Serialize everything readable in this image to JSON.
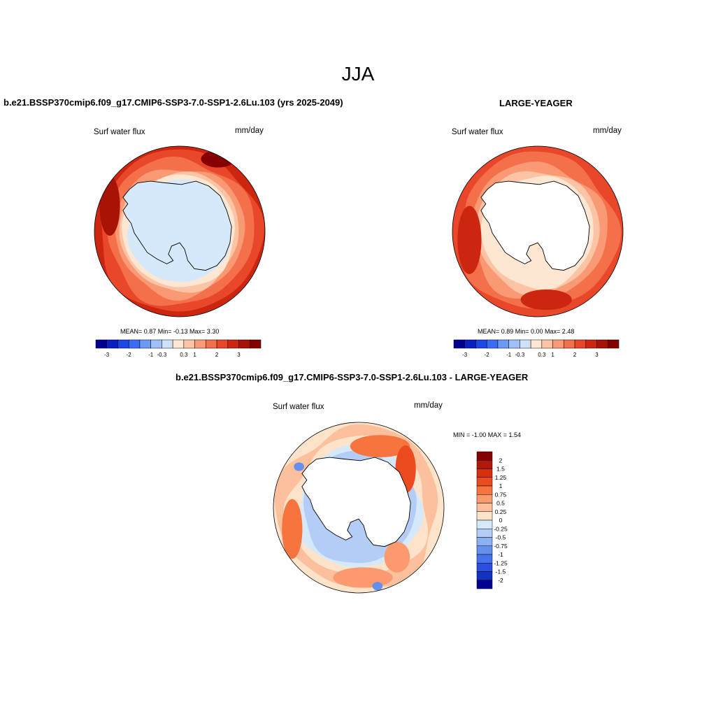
{
  "season_title": "JJA",
  "panels": [
    {
      "id": "model",
      "title": "b.e21.BSSP370cmip6.f09_g17.CMIP6-SSP3-7.0-SSP1-2.6Lu.103 (yrs 2025-2049)",
      "variable": "Surf water flux",
      "units": "mm/day",
      "stats": "MEAN=   0.87  Min=  -0.13  Max=    3.30",
      "interior_fill": "#d6e9fb"
    },
    {
      "id": "obs",
      "title": "LARGE-YEAGER",
      "variable": "Surf water flux",
      "units": "mm/day",
      "stats": "MEAN=   0.89  Min=   0.00  Max=   2.48",
      "interior_fill": "#ffffff"
    },
    {
      "id": "diff",
      "title": "b.e21.BSSP370cmip6.f09_g17.CMIP6-SSP3-7.0-SSP1-2.6Lu.103 - LARGE-YEAGER",
      "variable": "Surf water flux",
      "units": "mm/day",
      "stats": "MIN =  -1.00 MAX =   1.54",
      "interior_fill": "#ffffff"
    }
  ],
  "horizontal_colorbar": {
    "colors": [
      "#000090",
      "#0a1fc0",
      "#1c46e6",
      "#3a6ef2",
      "#6c99f4",
      "#9fbff5",
      "#cfe1f8",
      "#fde6d2",
      "#fcc3a4",
      "#f99a74",
      "#f3704b",
      "#e9472a",
      "#cc2610",
      "#a81306",
      "#850000"
    ],
    "labels": [
      "-3",
      "-2",
      "-1",
      "-0.3",
      "0.3",
      "1",
      "2",
      "3"
    ]
  },
  "vertical_colorbar": {
    "colors": [
      "#850000",
      "#b2180a",
      "#d6300f",
      "#ec4b1f",
      "#f7743f",
      "#fa9a6e",
      "#fcc09d",
      "#fde3ca",
      "#d6e9fb",
      "#b3cdf7",
      "#8cb0f4",
      "#6690ee",
      "#4672eb",
      "#2b50e0",
      "#1432c0",
      "#000090"
    ],
    "labels": [
      "2",
      "1.5",
      "1.25",
      "1",
      "0.75",
      "0.5",
      "0.25",
      "0",
      "-0.25",
      "-0.5",
      "-0.75",
      "-1",
      "-1.25",
      "-1.5",
      "-2"
    ]
  }
}
